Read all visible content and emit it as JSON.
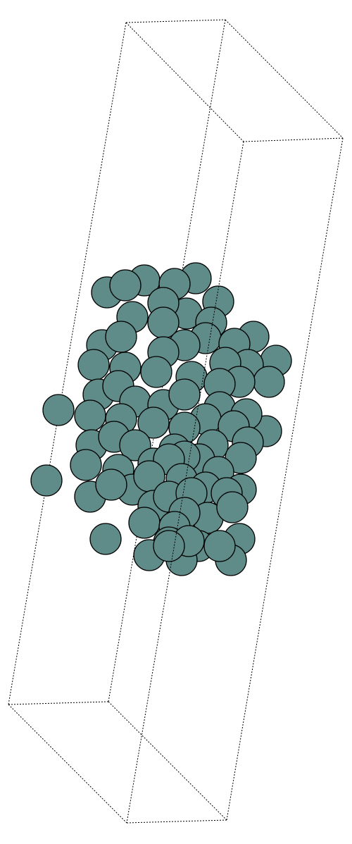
{
  "scene": {
    "atom_color": "#5f8c89",
    "outline_color": "#000000",
    "background": "#ffffff",
    "cell_line_style": "dotted"
  }
}
